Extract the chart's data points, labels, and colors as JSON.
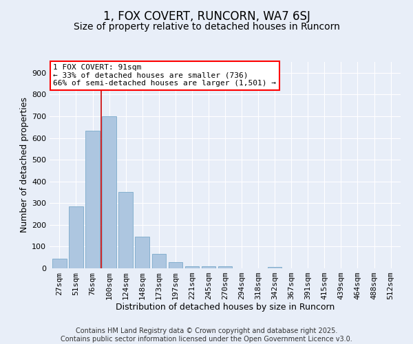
{
  "title": "1, FOX COVERT, RUNCORN, WA7 6SJ",
  "subtitle": "Size of property relative to detached houses in Runcorn",
  "xlabel": "Distribution of detached houses by size in Runcorn",
  "ylabel": "Number of detached properties",
  "categories": [
    "27sqm",
    "51sqm",
    "76sqm",
    "100sqm",
    "124sqm",
    "148sqm",
    "173sqm",
    "197sqm",
    "221sqm",
    "245sqm",
    "270sqm",
    "294sqm",
    "318sqm",
    "342sqm",
    "367sqm",
    "391sqm",
    "415sqm",
    "439sqm",
    "464sqm",
    "488sqm",
    "512sqm"
  ],
  "values": [
    45,
    285,
    633,
    700,
    350,
    145,
    65,
    30,
    10,
    10,
    10,
    0,
    0,
    5,
    0,
    0,
    0,
    0,
    0,
    0,
    0
  ],
  "bar_color": "#adc6e0",
  "bar_edge_color": "#7aaaca",
  "bg_color": "#e8eef8",
  "grid_color": "#ffffff",
  "vline_color": "#cc0000",
  "vline_x": 2.5,
  "annotation_text_line1": "1 FOX COVERT: 91sqm",
  "annotation_text_line2": "← 33% of detached houses are smaller (736)",
  "annotation_text_line3": "66% of semi-detached houses are larger (1,501) →",
  "footer": "Contains HM Land Registry data © Crown copyright and database right 2025.\nContains public sector information licensed under the Open Government Licence v3.0.",
  "ylim": [
    0,
    950
  ],
  "yticks": [
    0,
    100,
    200,
    300,
    400,
    500,
    600,
    700,
    800,
    900
  ],
  "title_fontsize": 12,
  "subtitle_fontsize": 10,
  "axis_label_fontsize": 9,
  "tick_fontsize": 8,
  "annotation_fontsize": 8,
  "footer_fontsize": 7
}
